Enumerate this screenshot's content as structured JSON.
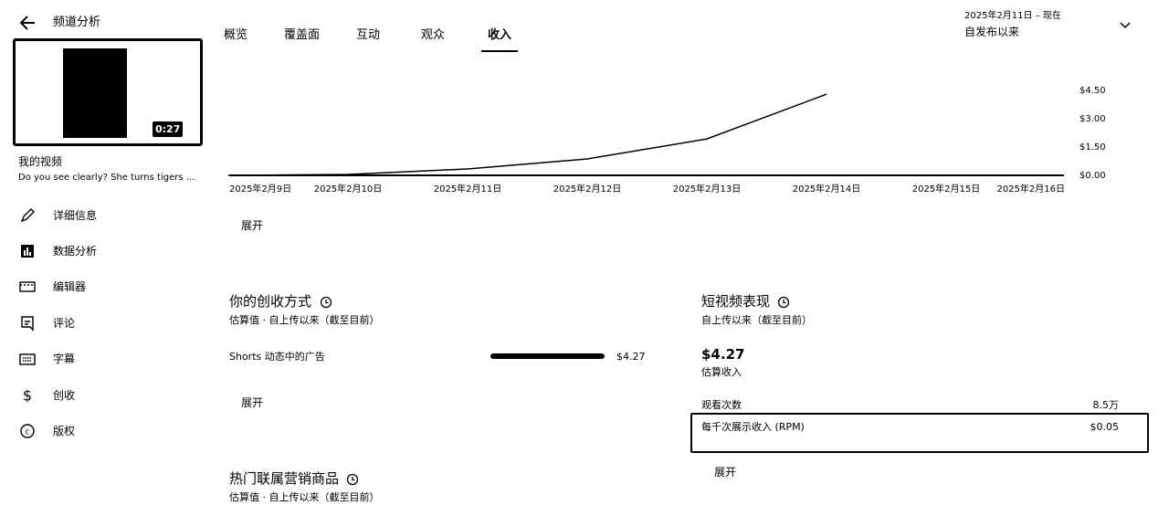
{
  "header": {
    "title": "频道分析"
  },
  "video": {
    "duration": "0:27",
    "section": "我的视频",
    "title": "Do you see clearly? She turns tigers ..."
  },
  "nav": [
    "详细信息",
    "数据分析",
    "编辑器",
    "评论",
    "字幕",
    "创收",
    "版权"
  ],
  "tabs": {
    "items": [
      "概览",
      "覆盖面",
      "互动",
      "观众",
      "收入"
    ],
    "active": 4
  },
  "date_range": {
    "range": "2025年2月11日 – 现在",
    "label": "自发布以来"
  },
  "chart": {
    "type": "line",
    "categories": [
      "2025年2月9日",
      "2025年2月10日",
      "2025年2月11日",
      "2025年2月12日",
      "2025年2月13日",
      "2025年2月14日",
      "2025年2月15日",
      "2025年2月16日"
    ],
    "values": [
      0,
      0.05,
      0.34,
      0.87,
      1.93,
      4.3,
      null,
      null
    ],
    "color": "#000000",
    "ylim": [
      0,
      4.5
    ],
    "yticks": [
      {
        "value": 0,
        "label": "$0.00"
      },
      {
        "value": 1.5,
        "label": "$1.50"
      },
      {
        "value": 3,
        "label": "$3.00"
      },
      {
        "value": 4.5,
        "label": "$4.50"
      }
    ],
    "grid": false,
    "expand": "展开"
  },
  "revenue_sources": {
    "title": "你的创收方式",
    "subtitle": "估算值 · 自上传以来（截至目前）",
    "items": [
      {
        "name": "Shorts 动态中的广告",
        "value": 4.27,
        "value_label": "$4.27"
      }
    ],
    "expand": "展开"
  },
  "shorts": {
    "title": "短视频表现",
    "subtitle": "自上传以来（截至目前）",
    "revenue": "$4.27",
    "revenue_label": "估算收入",
    "metrics": [
      {
        "name": "观看次数",
        "value": "8.5万"
      },
      {
        "name": "每千次展示收入 (RPM)",
        "value": "$0.05"
      }
    ],
    "expand": "展开"
  },
  "affiliate": {
    "title": "热门联属营销商品",
    "subtitle": "估算值 · 自上传以来（截至目前）"
  }
}
